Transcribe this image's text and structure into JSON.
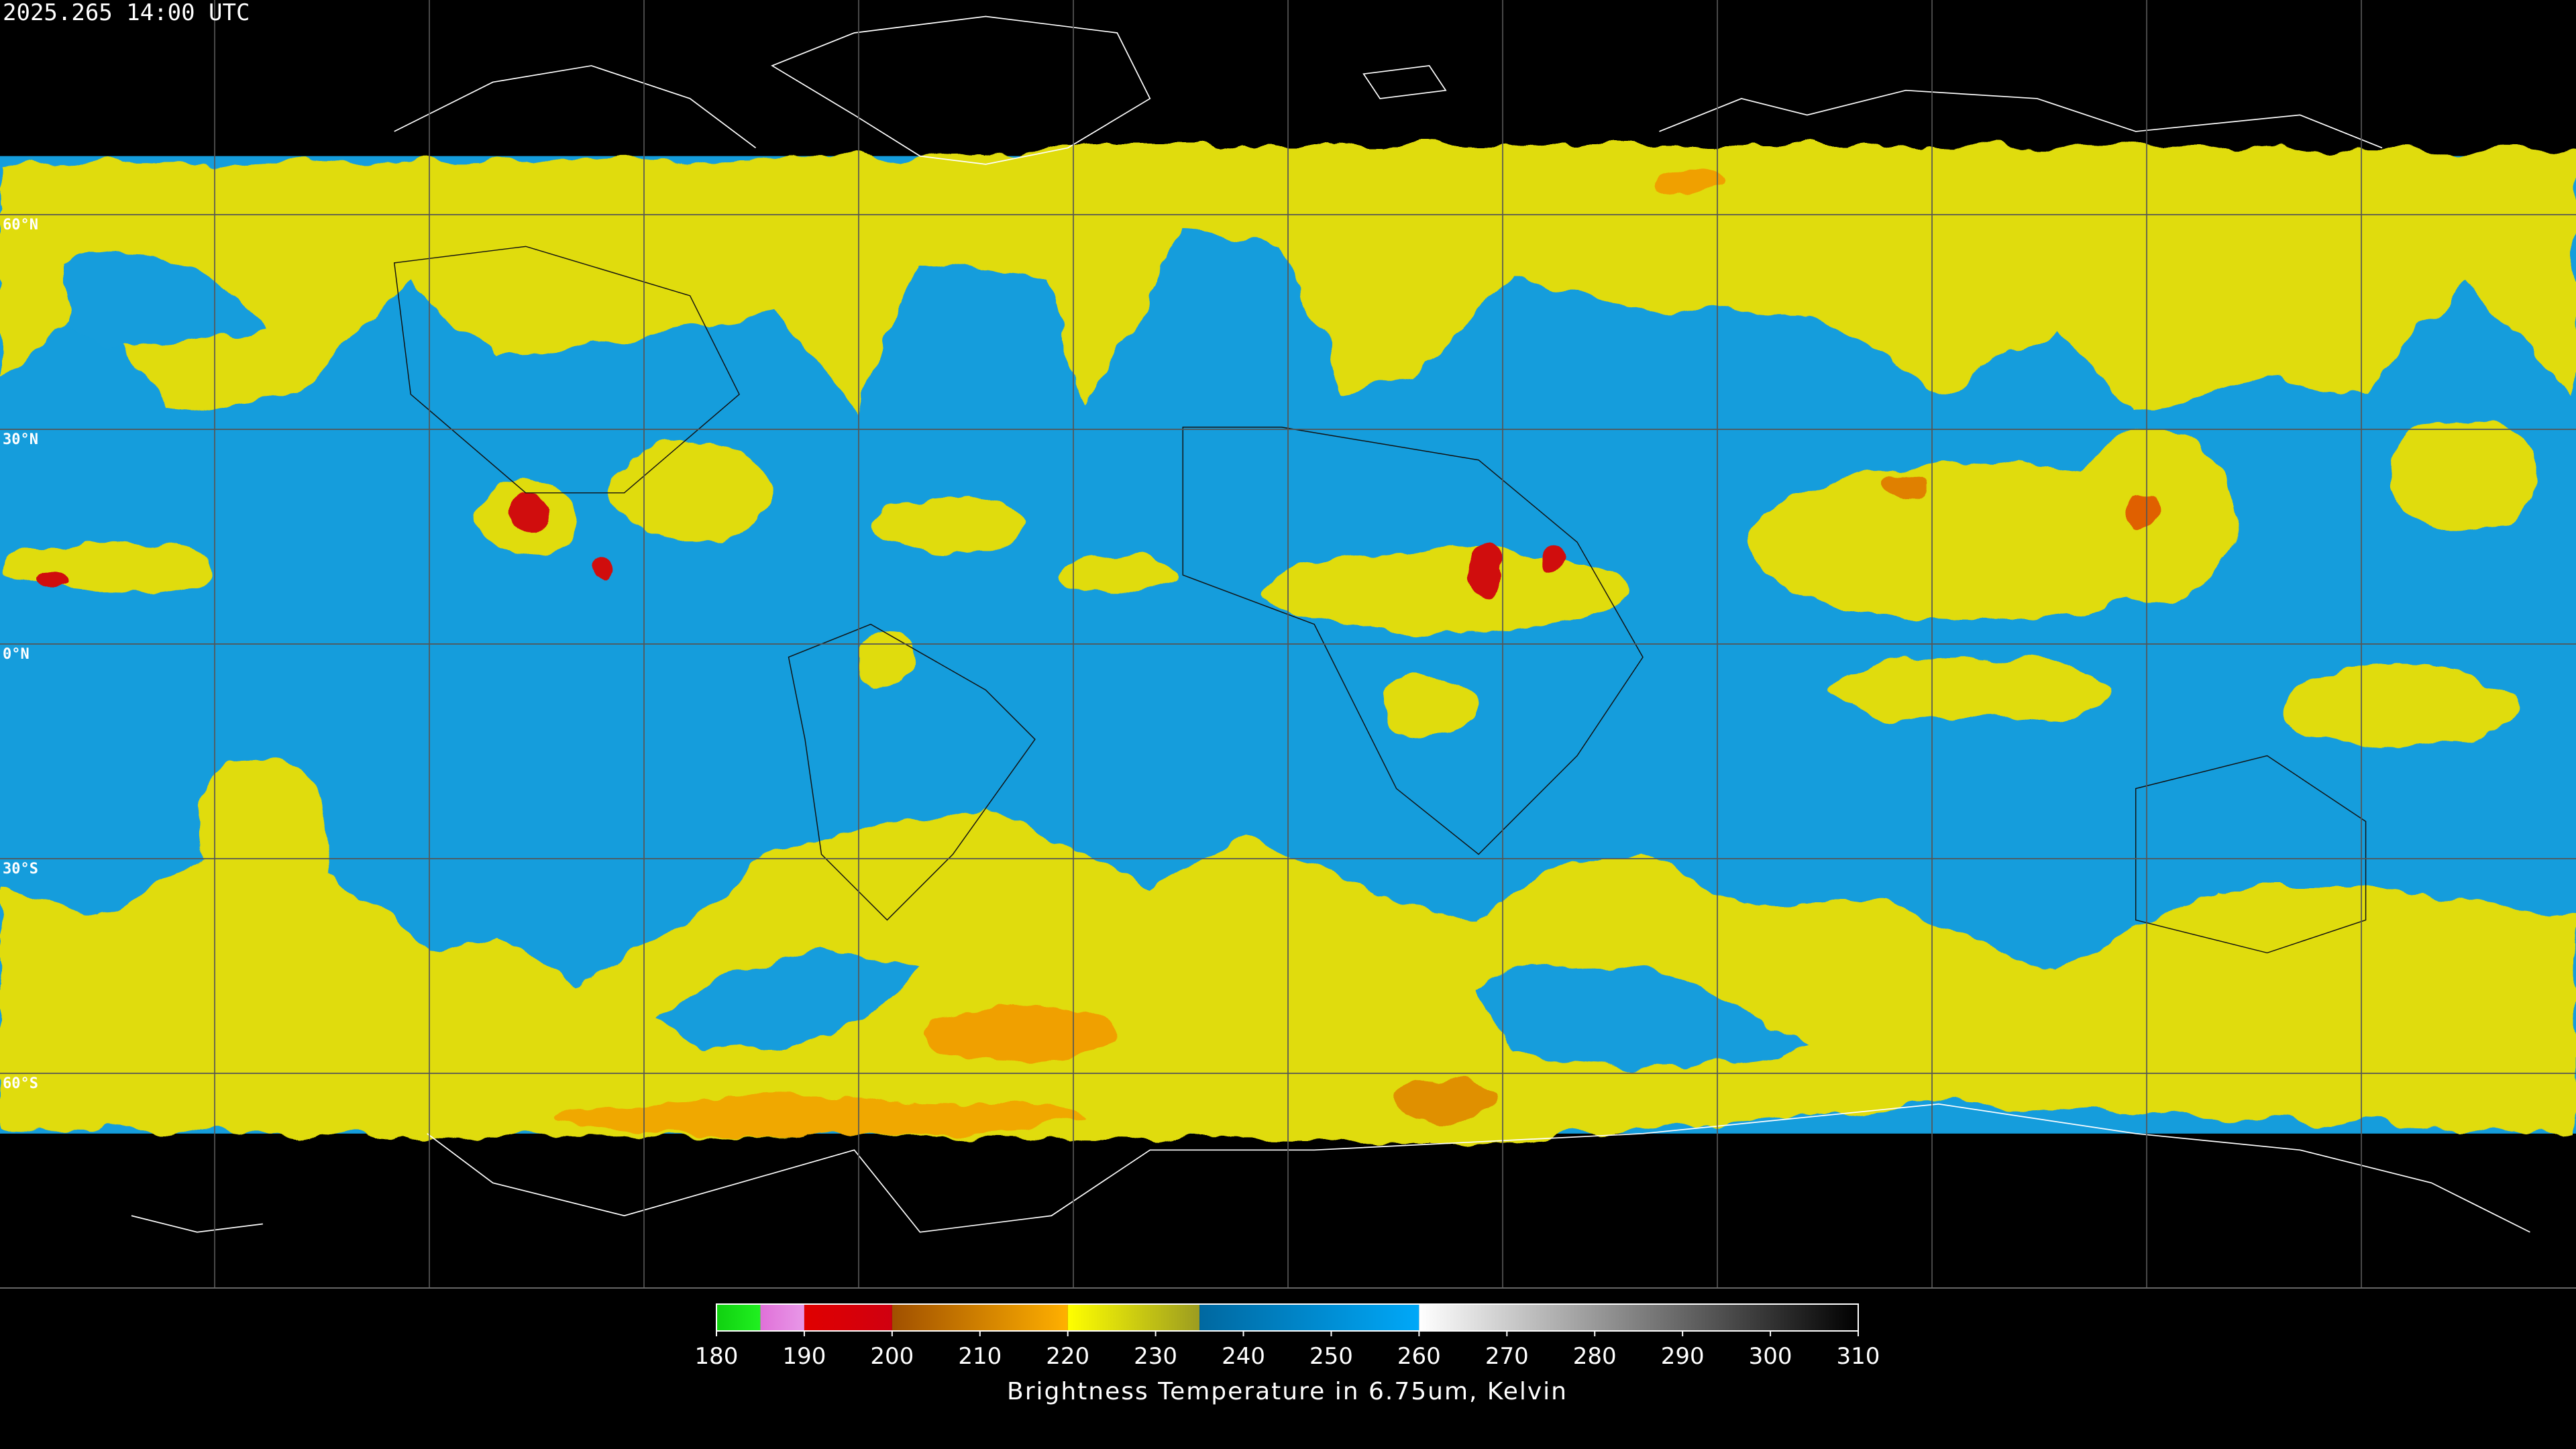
{
  "header": {
    "timestamp": "2025.265 14:00 UTC"
  },
  "map": {
    "lat_labels": [
      {
        "lat": 60,
        "label": "60°N"
      },
      {
        "lat": 30,
        "label": "30°N"
      },
      {
        "lat": 0,
        "label": "0°N"
      },
      {
        "lat": -30,
        "label": "30°S"
      },
      {
        "lat": -60,
        "label": "60°S"
      }
    ]
  },
  "colorbar": {
    "title": "Brightness Temperature in 6.75um, Kelvin",
    "range": [
      180,
      310
    ],
    "ticks": [
      180,
      190,
      200,
      210,
      220,
      230,
      240,
      250,
      260,
      270,
      280,
      290,
      300,
      310
    ],
    "segments": [
      {
        "from": 180,
        "to": 185,
        "colors": [
          "#10d010",
          "#20f020"
        ]
      },
      {
        "from": 185,
        "to": 190,
        "colors": [
          "#e070d8",
          "#e898e8"
        ]
      },
      {
        "from": 190,
        "to": 200,
        "colors": [
          "#e00000",
          "#d00010"
        ]
      },
      {
        "from": 200,
        "to": 220,
        "colors": [
          "#a05000",
          "#ffb000"
        ]
      },
      {
        "from": 220,
        "to": 235,
        "colors": [
          "#ffff00",
          "#9c9c20"
        ]
      },
      {
        "from": 235,
        "to": 260,
        "colors": [
          "#0068a0",
          "#00a8f8"
        ]
      },
      {
        "from": 260,
        "to": 310,
        "colors": [
          "#ffffff",
          "#000000"
        ]
      }
    ]
  }
}
